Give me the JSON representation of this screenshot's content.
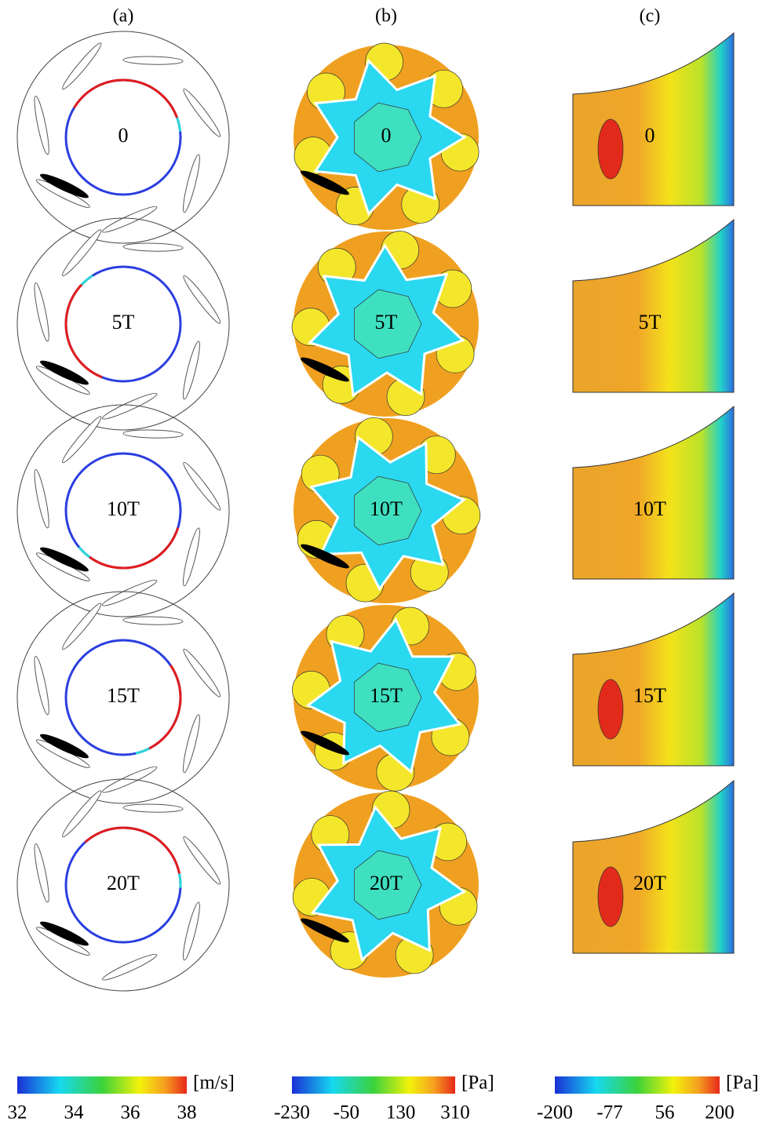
{
  "columns": [
    {
      "label": "(a)"
    },
    {
      "label": "(b)"
    },
    {
      "label": "(c)"
    }
  ],
  "rows": [
    {
      "label": "0"
    },
    {
      "label": "5T"
    },
    {
      "label": "10T"
    },
    {
      "label": "15T"
    },
    {
      "label": "20T"
    }
  ],
  "colorbars": [
    {
      "unit": "[m/s]",
      "ticks": [
        32,
        34,
        36,
        38
      ]
    },
    {
      "unit": "[Pa]",
      "ticks": [
        -230,
        -50,
        130,
        310
      ]
    },
    {
      "unit": "[Pa]",
      "ticks": [
        -200,
        -77,
        56,
        200
      ]
    }
  ]
}
